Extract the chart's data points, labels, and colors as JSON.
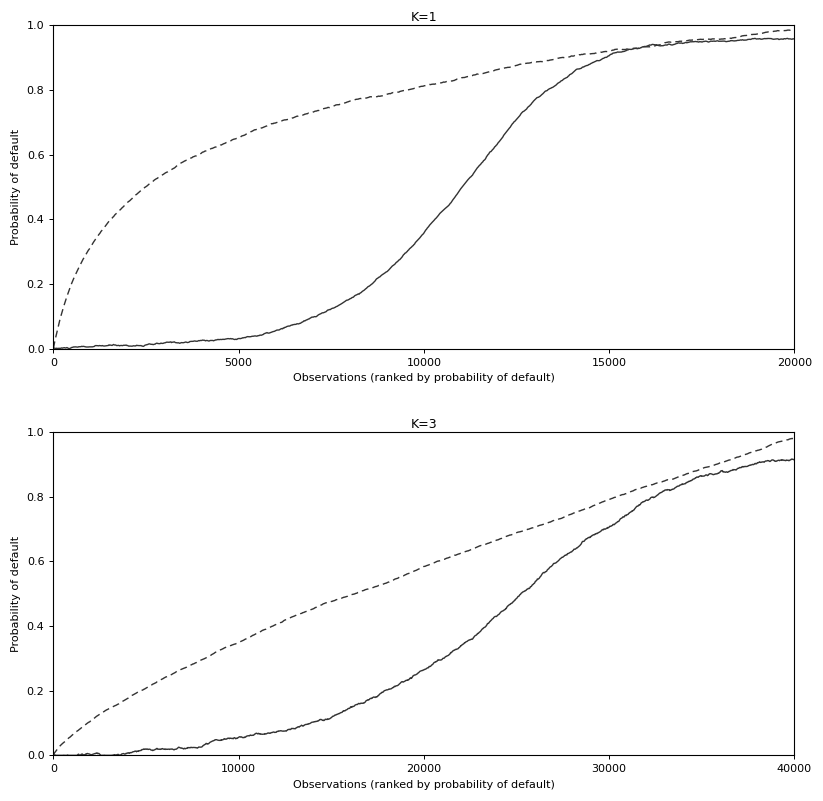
{
  "title1": "K=1",
  "title2": "K=3",
  "xlabel": "Observations (ranked by probability of default)",
  "ylabel": "Probability of default",
  "n1": 20000,
  "n2": 40000,
  "ylim": [
    0.0,
    1.0
  ],
  "yticks": [
    0.0,
    0.2,
    0.4,
    0.6,
    0.8,
    1.0
  ],
  "xticks1": [
    0,
    5000,
    10000,
    15000,
    20000
  ],
  "xticks2": [
    0,
    10000,
    20000,
    30000,
    40000
  ],
  "background_color": "#ffffff",
  "line_color": "#333333",
  "title_fontsize": 9,
  "label_fontsize": 8,
  "tick_fontsize": 8
}
